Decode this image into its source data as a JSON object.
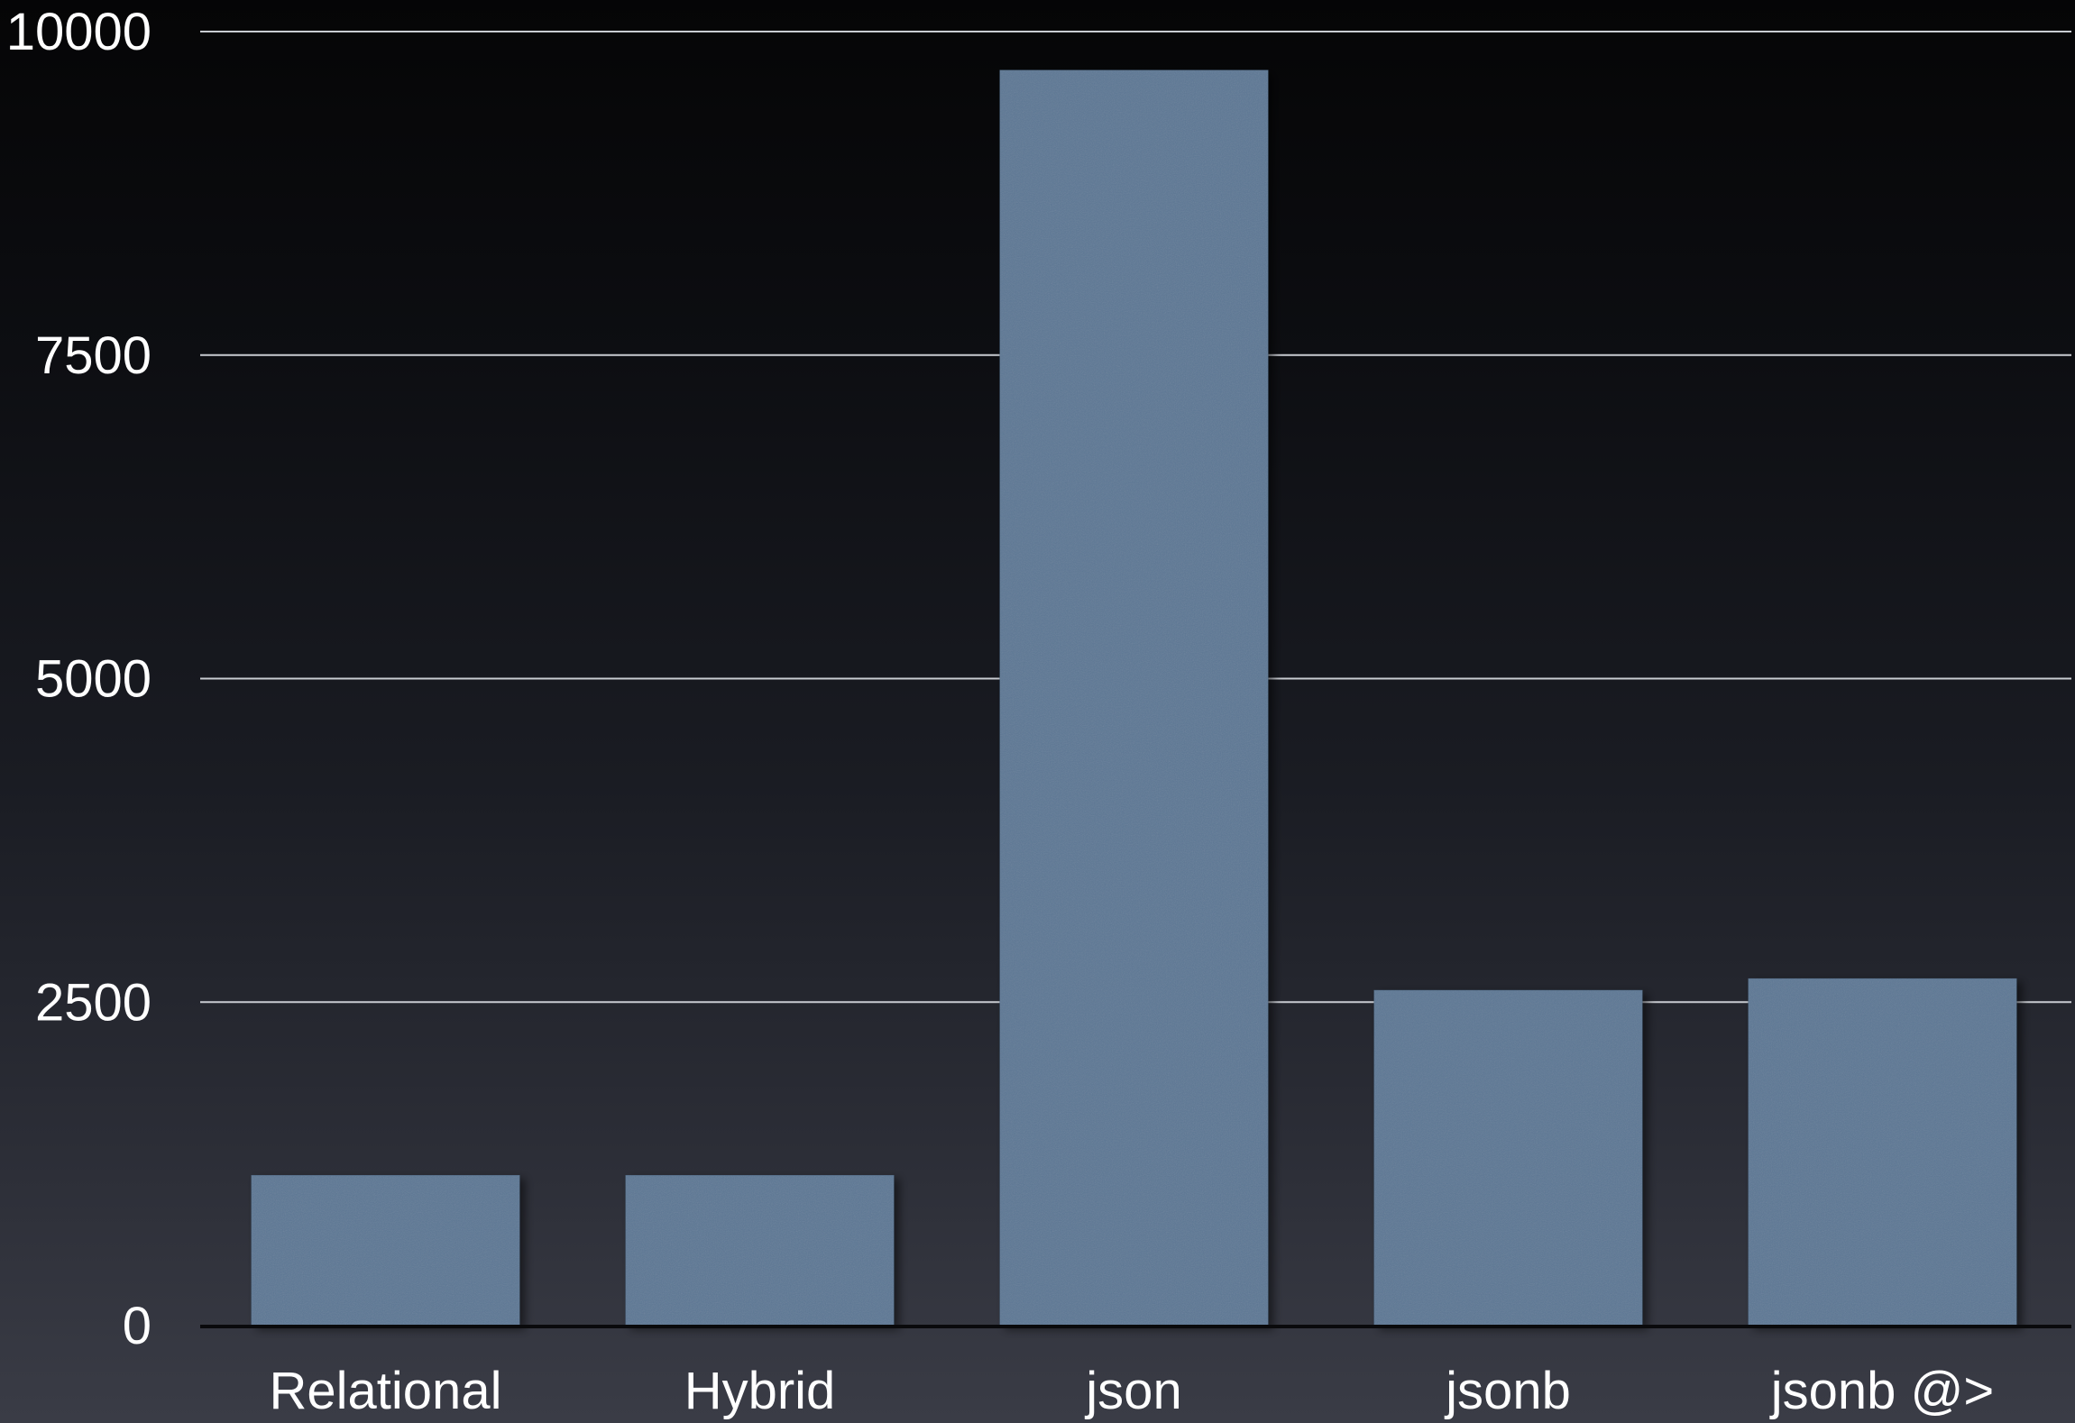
{
  "chart_data": {
    "type": "bar",
    "categories": [
      "Relational",
      "Hybrid",
      "json",
      "jsonb",
      "jsonb @>"
    ],
    "values": [
      1160,
      1160,
      9700,
      2590,
      2680
    ],
    "ylim": [
      0,
      10000
    ],
    "yticks": [
      0,
      2500,
      5000,
      7500,
      10000
    ],
    "ytick_labels": [
      "0",
      "2500",
      "5000",
      "7500",
      "10000"
    ],
    "grid": true,
    "legend": "none",
    "colors": {
      "bar": "#5d7895",
      "bar_edge": "#4f6983",
      "grid": "#c9ccd2",
      "baseline": "#0a0a0c",
      "text": "#ffffff"
    }
  }
}
